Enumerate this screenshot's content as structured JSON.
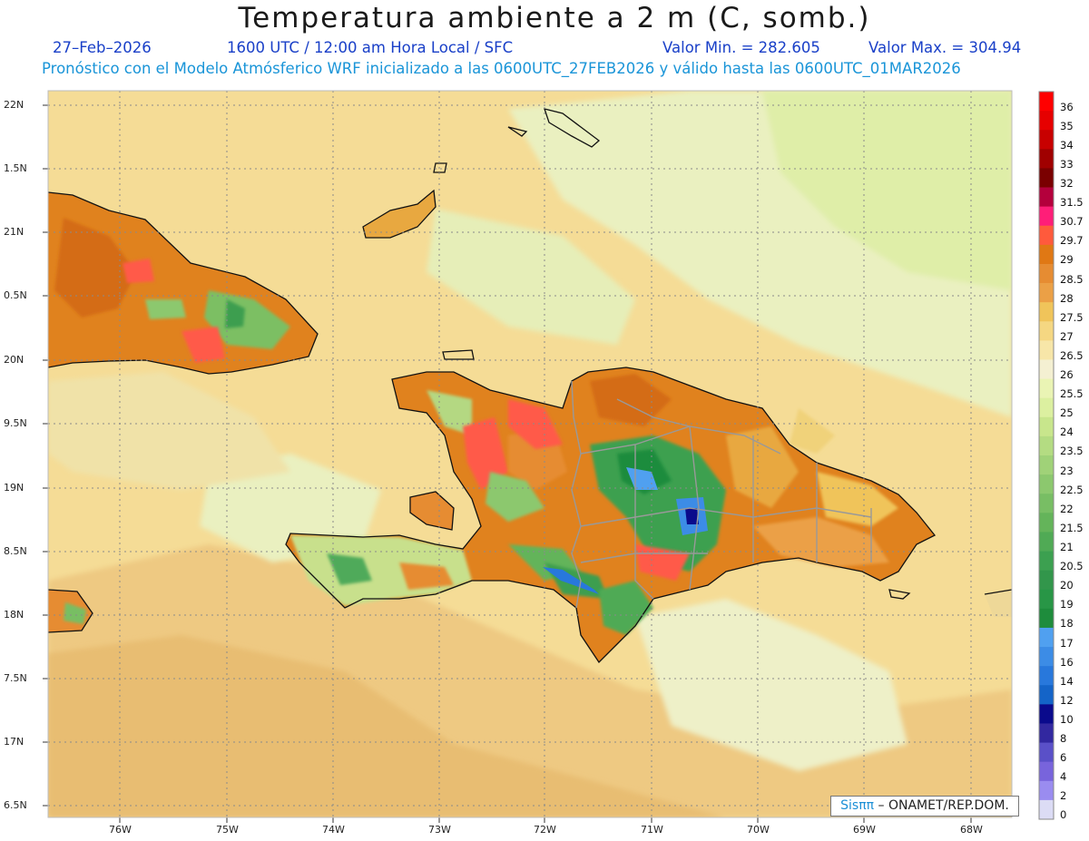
{
  "header": {
    "title": "Temperatura ambiente a 2 m (C, somb.)",
    "date": "27–Feb–2026",
    "time": "1600 UTC / 12:00 am Hora Local / SFC",
    "min_label": "Valor Min. = 282.605",
    "max_label": "Valor Max. = 304.94",
    "model_line": "Pronóstico con el Modelo Atmósferico WRF inicializado a las 0600UTC_27FEB2026 y válido hasta las  0600UTC_01MAR2026"
  },
  "map": {
    "lat_labels": [
      "22N",
      "1.5N",
      "21N",
      "0.5N",
      "20N",
      "9.5N",
      "19N",
      "8.5N",
      "18N",
      "7.5N",
      "17N",
      "6.5N"
    ],
    "lon_labels": [
      "76W",
      "75W",
      "74W",
      "73W",
      "72W",
      "71W",
      "70W",
      "69W",
      "68W"
    ],
    "credit_brand": "Sisππ",
    "credit_org": " – ONAMET/REP.DOM."
  },
  "colorbar": {
    "labels": [
      "36",
      "35",
      "34",
      "33",
      "32",
      "31.5",
      "30.7",
      "29.7",
      "29",
      "28.5",
      "28",
      "27.5",
      "27",
      "26.5",
      "26",
      "25.5",
      "25",
      "24",
      "23.5",
      "23",
      "22.5",
      "22",
      "21.5",
      "21",
      "20.5",
      "20",
      "19",
      "18",
      "17",
      "16",
      "14",
      "12",
      "10",
      "8",
      "6",
      "4",
      "2",
      "0"
    ],
    "colors": [
      "#ff0000",
      "#e60000",
      "#c80000",
      "#a00000",
      "#7a0000",
      "#b4003c",
      "#ff1e78",
      "#ff5a3c",
      "#e07814",
      "#e68c32",
      "#eba046",
      "#f0c45a",
      "#f5d782",
      "#f7e6a8",
      "#f4f0d2",
      "#eaf4b4",
      "#dcf0a0",
      "#c8e68c",
      "#b4dc82",
      "#a0d278",
      "#8cc86e",
      "#78be64",
      "#64b45a",
      "#50aa55",
      "#3ca050",
      "#32964b",
      "#289646",
      "#1e8c3c",
      "#50a0f0",
      "#3c8ce6",
      "#2878dc",
      "#1464c8",
      "#0a0a8c",
      "#3228a0",
      "#5a50c8",
      "#7864dc",
      "#9a8cf0",
      "#dcdcf5"
    ]
  }
}
